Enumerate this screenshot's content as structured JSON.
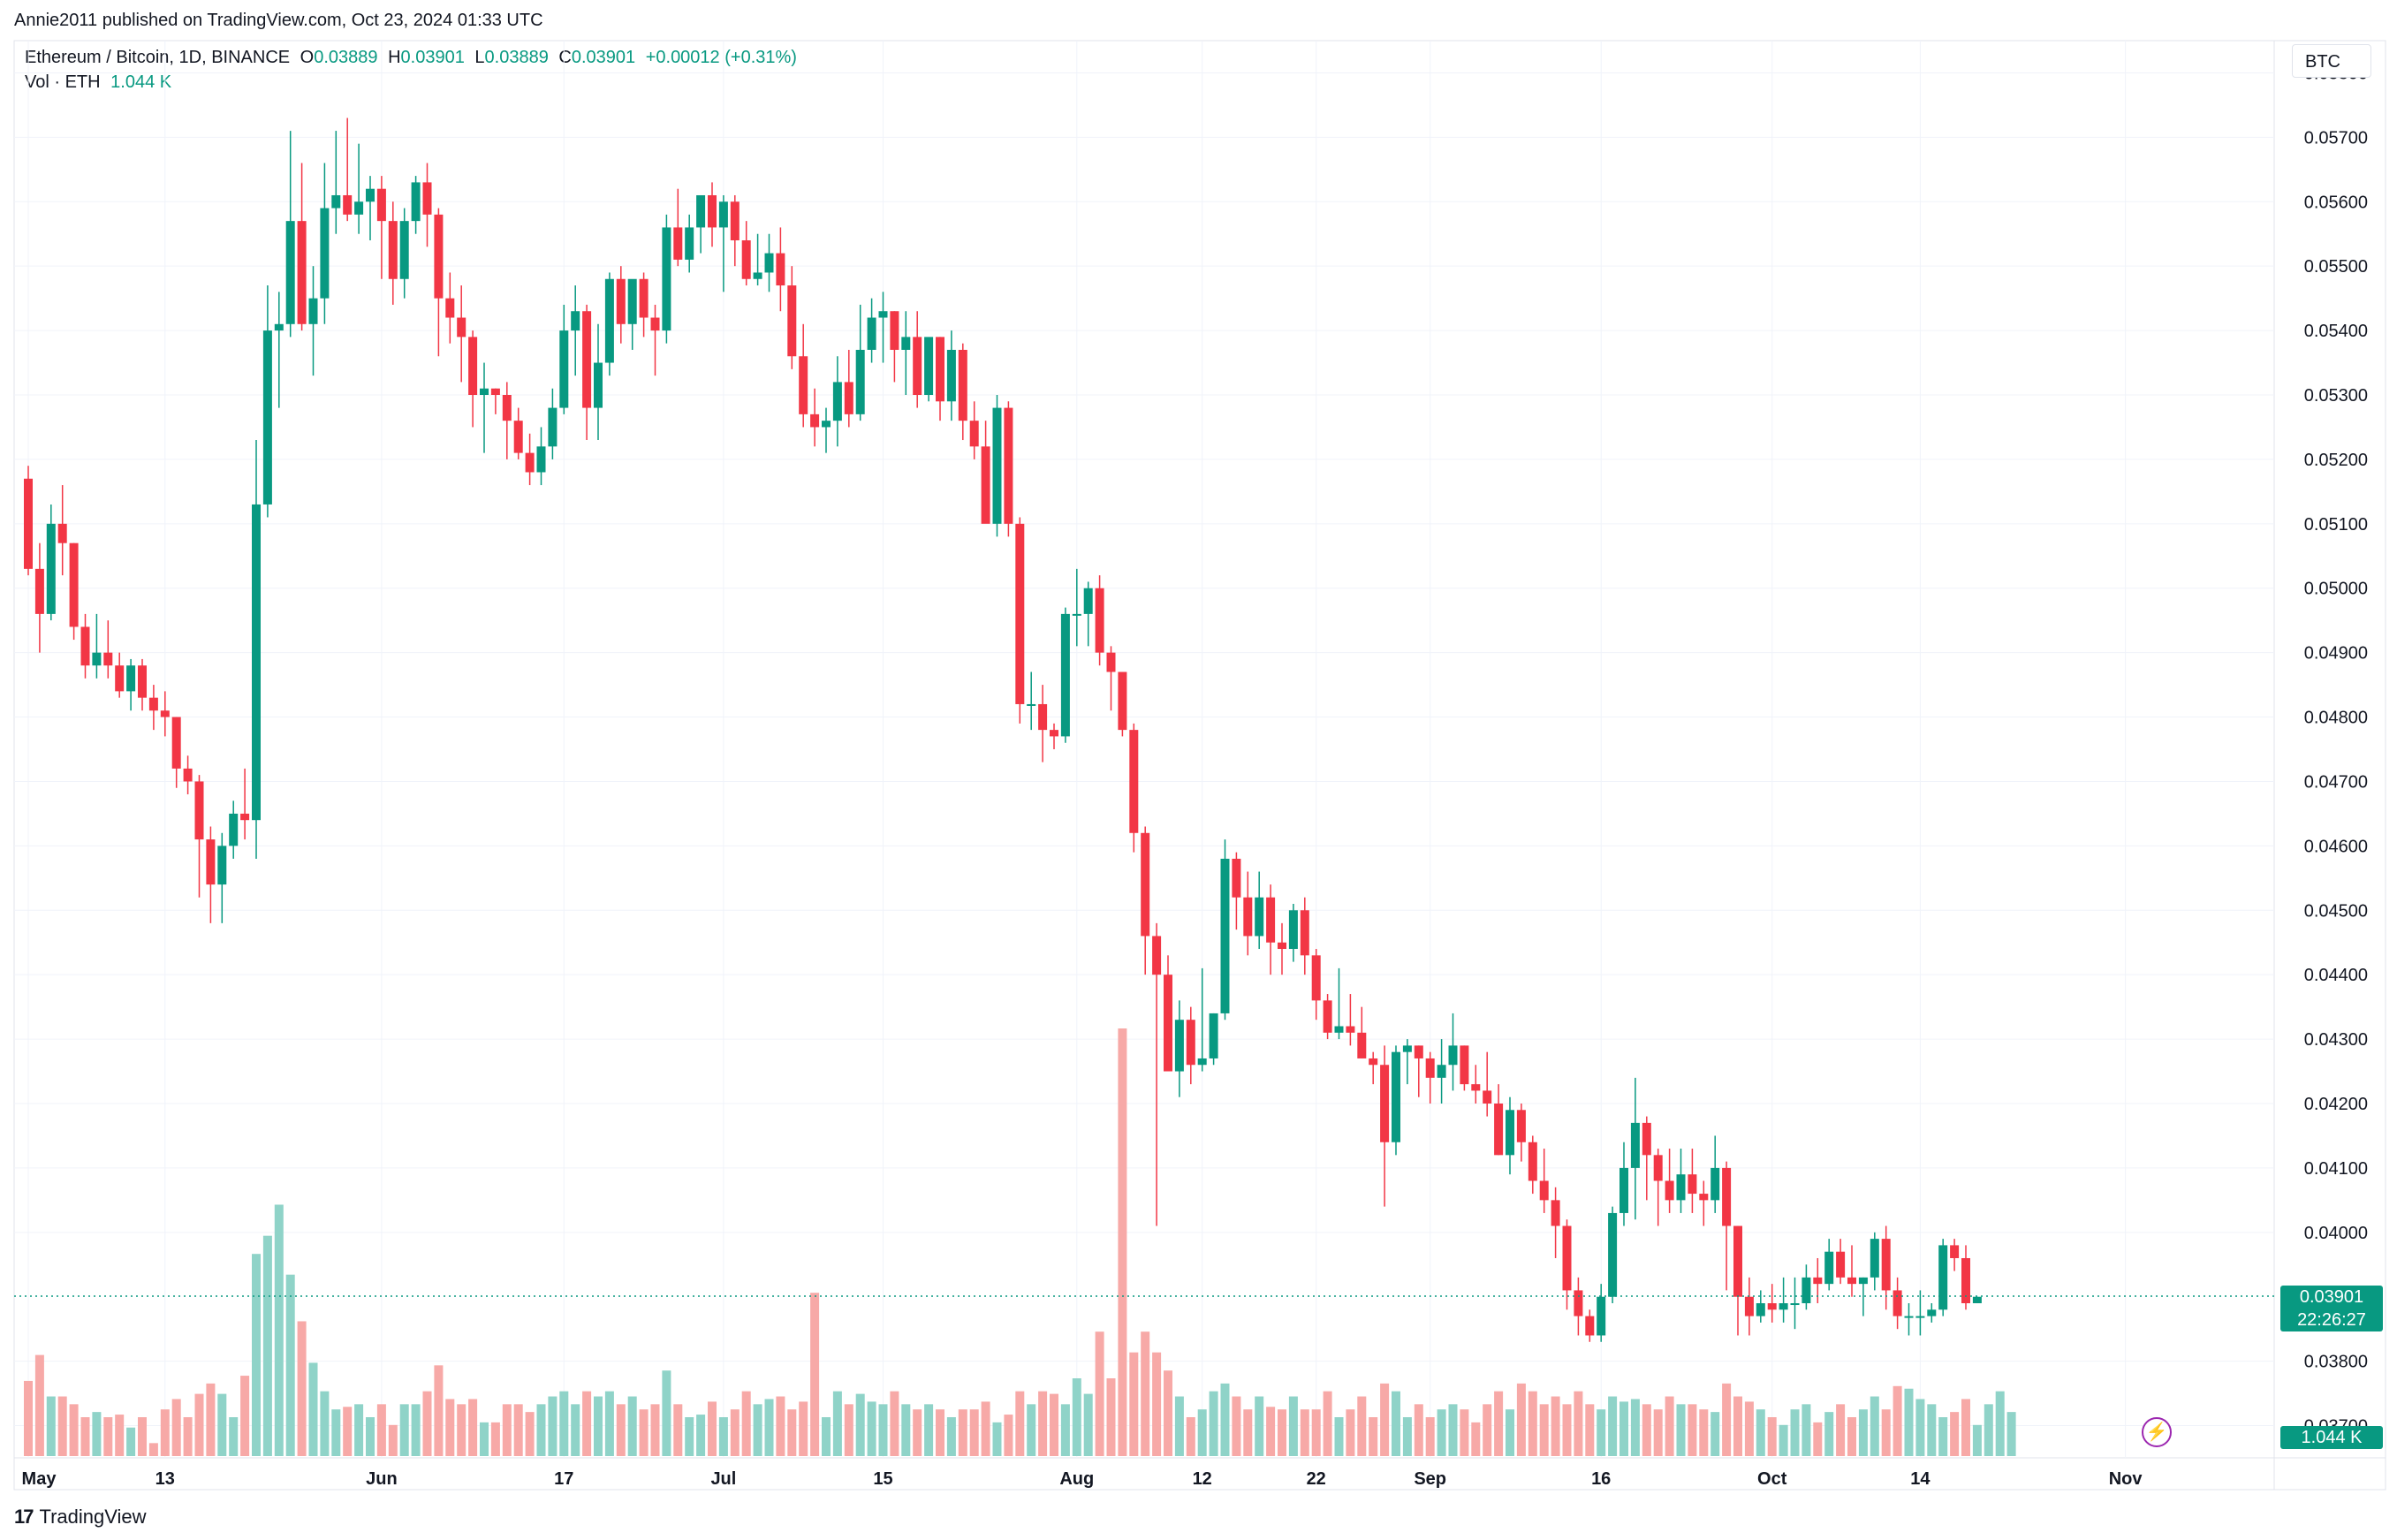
{
  "header": {
    "publisher": "Annie2011 published on TradingView.com, Oct 23, 2024 01:33 UTC",
    "symbol": "Ethereum / Bitcoin, 1D, BINANCE",
    "ohlc": {
      "o_label": "O",
      "o": "0.03889",
      "h_label": "H",
      "h": "0.03901",
      "l_label": "L",
      "l": "0.03889",
      "c_label": "C",
      "c": "0.03901",
      "change": "+0.00012 (+0.31%)"
    },
    "vol_label": "Vol · ETH",
    "vol_value": "1.044 K"
  },
  "unit_label": "BTC",
  "current_price": "0.03901",
  "countdown": "22:26:27",
  "volume_badge": "1.044 K",
  "footer": {
    "logo_mark": "17",
    "brand": "TradingView"
  },
  "colors": {
    "up": "#089981",
    "down": "#f23645",
    "up_vol": "#8fd3c8",
    "down_vol": "#f7a9a7",
    "grid": "#f0f3fa"
  },
  "chart_data": {
    "type": "candlestick",
    "title": "Ethereum / Bitcoin, 1D, BINANCE",
    "ylabel": "BTC",
    "ylim": [
      0.0365,
      0.0585
    ],
    "y_ticks": [
      "0.05800",
      "0.05700",
      "0.05600",
      "0.05500",
      "0.05400",
      "0.05300",
      "0.05200",
      "0.05100",
      "0.05000",
      "0.04900",
      "0.04800",
      "0.04700",
      "0.04600",
      "0.04500",
      "0.04400",
      "0.04300",
      "0.04200",
      "0.04100",
      "0.04000",
      "0.03800",
      "0.03700"
    ],
    "x_ticks": [
      {
        "label": "May",
        "index": 0
      },
      {
        "label": "13",
        "index": 12
      },
      {
        "label": "Jun",
        "index": 31
      },
      {
        "label": "17",
        "index": 47
      },
      {
        "label": "Jul",
        "index": 61
      },
      {
        "label": "15",
        "index": 75
      },
      {
        "label": "Aug",
        "index": 92
      },
      {
        "label": "12",
        "index": 103
      },
      {
        "label": "22",
        "index": 113
      },
      {
        "label": "Sep",
        "index": 123
      },
      {
        "label": "16",
        "index": 138
      },
      {
        "label": "Oct",
        "index": 153
      },
      {
        "label": "14",
        "index": 166
      },
      {
        "label": "Nov",
        "index": 184
      }
    ],
    "grid": true,
    "candles": [
      [
        0.0517,
        0.0519,
        0.0502,
        0.0503
      ],
      [
        0.0503,
        0.0507,
        0.049,
        0.0496
      ],
      [
        0.0496,
        0.0513,
        0.0495,
        0.051
      ],
      [
        0.051,
        0.0516,
        0.0502,
        0.0507
      ],
      [
        0.0507,
        0.0507,
        0.0492,
        0.0494
      ],
      [
        0.0494,
        0.0496,
        0.0486,
        0.0488
      ],
      [
        0.0488,
        0.0496,
        0.0486,
        0.049
      ],
      [
        0.049,
        0.0495,
        0.0486,
        0.0488
      ],
      [
        0.0488,
        0.049,
        0.0483,
        0.0484
      ],
      [
        0.0484,
        0.0489,
        0.0481,
        0.0488
      ],
      [
        0.0488,
        0.0489,
        0.0481,
        0.0483
      ],
      [
        0.0483,
        0.0485,
        0.0478,
        0.0481
      ],
      [
        0.0481,
        0.0484,
        0.0477,
        0.048
      ],
      [
        0.048,
        0.048,
        0.0469,
        0.0472
      ],
      [
        0.0472,
        0.0474,
        0.0468,
        0.047
      ],
      [
        0.047,
        0.0471,
        0.0452,
        0.0461
      ],
      [
        0.0461,
        0.0463,
        0.0448,
        0.0454
      ],
      [
        0.0454,
        0.0462,
        0.0448,
        0.046
      ],
      [
        0.046,
        0.0467,
        0.0458,
        0.0465
      ],
      [
        0.0465,
        0.0472,
        0.0461,
        0.0464
      ],
      [
        0.0464,
        0.0523,
        0.0458,
        0.0513
      ],
      [
        0.0513,
        0.0547,
        0.0511,
        0.054
      ],
      [
        0.054,
        0.0546,
        0.0528,
        0.0541
      ],
      [
        0.0541,
        0.0571,
        0.0539,
        0.0557
      ],
      [
        0.0557,
        0.0566,
        0.054,
        0.0541
      ],
      [
        0.0541,
        0.055,
        0.0533,
        0.0545
      ],
      [
        0.0545,
        0.0566,
        0.0541,
        0.0559
      ],
      [
        0.0559,
        0.0571,
        0.0555,
        0.0561
      ],
      [
        0.0561,
        0.0573,
        0.0557,
        0.0558
      ],
      [
        0.0558,
        0.0569,
        0.0555,
        0.056
      ],
      [
        0.056,
        0.0564,
        0.0554,
        0.0562
      ],
      [
        0.0562,
        0.0564,
        0.0548,
        0.0557
      ],
      [
        0.0557,
        0.056,
        0.0544,
        0.0548
      ],
      [
        0.0548,
        0.0559,
        0.0545,
        0.0557
      ],
      [
        0.0557,
        0.0564,
        0.0555,
        0.0563
      ],
      [
        0.0563,
        0.0566,
        0.0553,
        0.0558
      ],
      [
        0.0558,
        0.0559,
        0.0536,
        0.0545
      ],
      [
        0.0545,
        0.0549,
        0.0538,
        0.0542
      ],
      [
        0.0542,
        0.0547,
        0.0532,
        0.0539
      ],
      [
        0.0539,
        0.054,
        0.0525,
        0.053
      ],
      [
        0.053,
        0.0535,
        0.0521,
        0.0531
      ],
      [
        0.0531,
        0.0531,
        0.0527,
        0.053
      ],
      [
        0.053,
        0.0532,
        0.052,
        0.0526
      ],
      [
        0.0526,
        0.0528,
        0.052,
        0.0521
      ],
      [
        0.0521,
        0.0524,
        0.0516,
        0.0518
      ],
      [
        0.0518,
        0.0525,
        0.0516,
        0.0522
      ],
      [
        0.0522,
        0.0531,
        0.052,
        0.0528
      ],
      [
        0.0528,
        0.0544,
        0.0527,
        0.054
      ],
      [
        0.054,
        0.0547,
        0.0533,
        0.0543
      ],
      [
        0.0543,
        0.0544,
        0.0523,
        0.0528
      ],
      [
        0.0528,
        0.0541,
        0.0523,
        0.0535
      ],
      [
        0.0535,
        0.0549,
        0.0533,
        0.0548
      ],
      [
        0.0548,
        0.055,
        0.0538,
        0.0541
      ],
      [
        0.0541,
        0.0547,
        0.0537,
        0.0548
      ],
      [
        0.0548,
        0.0549,
        0.0539,
        0.0542
      ],
      [
        0.0542,
        0.0544,
        0.0533,
        0.054
      ],
      [
        0.054,
        0.0558,
        0.0538,
        0.0556
      ],
      [
        0.0556,
        0.0562,
        0.055,
        0.0551
      ],
      [
        0.0551,
        0.0558,
        0.0549,
        0.0556
      ],
      [
        0.0556,
        0.0561,
        0.0552,
        0.0561
      ],
      [
        0.0561,
        0.0563,
        0.0553,
        0.0556
      ],
      [
        0.0556,
        0.0561,
        0.0546,
        0.056
      ],
      [
        0.056,
        0.0561,
        0.055,
        0.0554
      ],
      [
        0.0554,
        0.0557,
        0.0547,
        0.0548
      ],
      [
        0.0548,
        0.0555,
        0.0547,
        0.0549
      ],
      [
        0.0549,
        0.0555,
        0.0546,
        0.0552
      ],
      [
        0.0552,
        0.0556,
        0.0543,
        0.0547
      ],
      [
        0.0547,
        0.055,
        0.0534,
        0.0536
      ],
      [
        0.0536,
        0.0541,
        0.0525,
        0.0527
      ],
      [
        0.0527,
        0.0531,
        0.0522,
        0.0525
      ],
      [
        0.0525,
        0.0528,
        0.0521,
        0.0526
      ],
      [
        0.0526,
        0.0536,
        0.0522,
        0.0532
      ],
      [
        0.0532,
        0.0537,
        0.0525,
        0.0527
      ],
      [
        0.0527,
        0.0544,
        0.0526,
        0.0537
      ],
      [
        0.0537,
        0.0545,
        0.0535,
        0.0542
      ],
      [
        0.0542,
        0.0546,
        0.0535,
        0.0543
      ],
      [
        0.0543,
        0.0543,
        0.0532,
        0.0537
      ],
      [
        0.0537,
        0.0543,
        0.053,
        0.0539
      ],
      [
        0.0539,
        0.0543,
        0.0528,
        0.053
      ],
      [
        0.053,
        0.0538,
        0.0529,
        0.0539
      ],
      [
        0.0539,
        0.0539,
        0.0526,
        0.0529
      ],
      [
        0.0529,
        0.054,
        0.0526,
        0.0537
      ],
      [
        0.0537,
        0.0538,
        0.0523,
        0.0526
      ],
      [
        0.0526,
        0.0529,
        0.052,
        0.0522
      ],
      [
        0.0522,
        0.0526,
        0.0512,
        0.051
      ],
      [
        0.051,
        0.053,
        0.0508,
        0.0528
      ],
      [
        0.0528,
        0.0529,
        0.0508,
        0.051
      ],
      [
        0.051,
        0.0511,
        0.0479,
        0.0482
      ],
      [
        0.0482,
        0.0487,
        0.0478,
        0.0482
      ],
      [
        0.0482,
        0.0485,
        0.0473,
        0.0478
      ],
      [
        0.0478,
        0.0479,
        0.0475,
        0.0477
      ],
      [
        0.0477,
        0.0497,
        0.0476,
        0.0496
      ],
      [
        0.0496,
        0.0503,
        0.0491,
        0.0496
      ],
      [
        0.0496,
        0.0501,
        0.0491,
        0.05
      ],
      [
        0.05,
        0.0502,
        0.0488,
        0.049
      ],
      [
        0.049,
        0.0491,
        0.0481,
        0.0487
      ],
      [
        0.0487,
        0.0487,
        0.0477,
        0.0478
      ],
      [
        0.0478,
        0.0479,
        0.0459,
        0.0462
      ],
      [
        0.0462,
        0.0463,
        0.044,
        0.0446
      ],
      [
        0.0446,
        0.0448,
        0.0401,
        0.044
      ],
      [
        0.044,
        0.0443,
        0.0427,
        0.0425
      ],
      [
        0.0425,
        0.0436,
        0.0421,
        0.0433
      ],
      [
        0.0433,
        0.0435,
        0.0423,
        0.0426
      ],
      [
        0.0426,
        0.0441,
        0.0425,
        0.0427
      ],
      [
        0.0427,
        0.0434,
        0.0426,
        0.0434
      ],
      [
        0.0434,
        0.0461,
        0.0433,
        0.0458
      ],
      [
        0.0458,
        0.0459,
        0.0447,
        0.0452
      ],
      [
        0.0452,
        0.0456,
        0.0443,
        0.0446
      ],
      [
        0.0446,
        0.0456,
        0.0444,
        0.0452
      ],
      [
        0.0452,
        0.0454,
        0.044,
        0.0445
      ],
      [
        0.0445,
        0.0448,
        0.044,
        0.0444
      ],
      [
        0.0444,
        0.0451,
        0.0442,
        0.045
      ],
      [
        0.045,
        0.0452,
        0.044,
        0.0443
      ],
      [
        0.0443,
        0.0444,
        0.0433,
        0.0436
      ],
      [
        0.0436,
        0.0437,
        0.043,
        0.0431
      ],
      [
        0.0431,
        0.0441,
        0.043,
        0.0432
      ],
      [
        0.0432,
        0.0437,
        0.0429,
        0.0431
      ],
      [
        0.0431,
        0.0435,
        0.0427,
        0.0427
      ],
      [
        0.0427,
        0.0428,
        0.0423,
        0.0426
      ],
      [
        0.0426,
        0.0429,
        0.0404,
        0.0414
      ],
      [
        0.0414,
        0.0429,
        0.0412,
        0.0428
      ],
      [
        0.0428,
        0.043,
        0.0423,
        0.0429
      ],
      [
        0.0429,
        0.0429,
        0.0421,
        0.0427
      ],
      [
        0.0427,
        0.0428,
        0.042,
        0.0424
      ],
      [
        0.0424,
        0.043,
        0.042,
        0.0426
      ],
      [
        0.0426,
        0.0434,
        0.0422,
        0.0429
      ],
      [
        0.0429,
        0.0429,
        0.0422,
        0.0423
      ],
      [
        0.0423,
        0.0426,
        0.042,
        0.0422
      ],
      [
        0.0422,
        0.0428,
        0.0418,
        0.042
      ],
      [
        0.042,
        0.0423,
        0.0412,
        0.0412
      ],
      [
        0.0412,
        0.0421,
        0.0409,
        0.0419
      ],
      [
        0.0419,
        0.042,
        0.0411,
        0.0414
      ],
      [
        0.0414,
        0.0415,
        0.0406,
        0.0408
      ],
      [
        0.0408,
        0.0413,
        0.0403,
        0.0405
      ],
      [
        0.0405,
        0.0407,
        0.0396,
        0.0401
      ],
      [
        0.0401,
        0.0402,
        0.0388,
        0.0391
      ],
      [
        0.0391,
        0.0393,
        0.0384,
        0.0387
      ],
      [
        0.0387,
        0.0388,
        0.0383,
        0.0384
      ],
      [
        0.0384,
        0.0392,
        0.0383,
        0.039
      ],
      [
        0.039,
        0.0404,
        0.0389,
        0.0403
      ],
      [
        0.0403,
        0.0414,
        0.0401,
        0.041
      ],
      [
        0.041,
        0.0424,
        0.0402,
        0.0417
      ],
      [
        0.0417,
        0.0418,
        0.0405,
        0.0412
      ],
      [
        0.0412,
        0.0413,
        0.0401,
        0.0408
      ],
      [
        0.0408,
        0.0413,
        0.0403,
        0.0405
      ],
      [
        0.0405,
        0.0413,
        0.0403,
        0.0409
      ],
      [
        0.0409,
        0.0413,
        0.0403,
        0.0406
      ],
      [
        0.0406,
        0.0408,
        0.0401,
        0.0405
      ],
      [
        0.0405,
        0.0415,
        0.0403,
        0.041
      ],
      [
        0.041,
        0.0411,
        0.0391,
        0.0401
      ],
      [
        0.0401,
        0.0401,
        0.0384,
        0.039
      ],
      [
        0.039,
        0.0393,
        0.0384,
        0.0387
      ],
      [
        0.0387,
        0.0391,
        0.0386,
        0.0389
      ],
      [
        0.0389,
        0.0392,
        0.0386,
        0.0388
      ],
      [
        0.0388,
        0.0393,
        0.0386,
        0.0389
      ],
      [
        0.0389,
        0.0393,
        0.0385,
        0.0389
      ],
      [
        0.0389,
        0.0395,
        0.0388,
        0.0393
      ],
      [
        0.0393,
        0.0396,
        0.0389,
        0.0392
      ],
      [
        0.0392,
        0.0399,
        0.0391,
        0.0397
      ],
      [
        0.0397,
        0.0399,
        0.0392,
        0.0393
      ],
      [
        0.0393,
        0.0398,
        0.039,
        0.0392
      ],
      [
        0.0392,
        0.0393,
        0.0387,
        0.0393
      ],
      [
        0.0393,
        0.04,
        0.0391,
        0.0399
      ],
      [
        0.0399,
        0.0401,
        0.0388,
        0.0391
      ],
      [
        0.0391,
        0.0393,
        0.0385,
        0.0387
      ],
      [
        0.0387,
        0.0389,
        0.0384,
        0.0387
      ],
      [
        0.0387,
        0.0391,
        0.0384,
        0.0387
      ],
      [
        0.0387,
        0.0389,
        0.0386,
        0.0388
      ],
      [
        0.0388,
        0.0399,
        0.0387,
        0.0398
      ],
      [
        0.0398,
        0.0399,
        0.0394,
        0.0396
      ],
      [
        0.0396,
        0.0398,
        0.0388,
        0.0389
      ],
      [
        0.0389,
        0.039,
        0.0389,
        0.039
      ]
    ],
    "volume_series": {
      "name": "Vol · ETH",
      "ylim": [
        0,
        300
      ],
      "values": [
        58,
        78,
        46,
        46,
        40,
        30,
        34,
        30,
        32,
        22,
        30,
        10,
        36,
        44,
        30,
        48,
        56,
        48,
        30,
        62,
        156,
        170,
        194,
        140,
        104,
        72,
        50,
        36,
        38,
        40,
        30,
        40,
        24,
        40,
        40,
        50,
        70,
        44,
        40,
        44,
        26,
        26,
        40,
        40,
        34,
        40,
        46,
        50,
        40,
        50,
        46,
        50,
        40,
        46,
        36,
        40,
        66,
        40,
        30,
        32,
        42,
        30,
        36,
        50,
        40,
        44,
        46,
        36,
        42,
        126,
        30,
        50,
        40,
        48,
        42,
        40,
        50,
        40,
        36,
        40,
        36,
        30,
        36,
        36,
        42,
        26,
        32,
        50,
        40,
        50,
        48,
        40,
        60,
        48,
        96,
        60,
        330,
        80,
        96,
        80,
        66,
        46,
        30,
        36,
        50,
        56,
        46,
        36,
        46,
        38,
        36,
        46,
        36,
        36,
        50,
        30,
        36,
        46,
        30,
        56,
        50,
        30,
        40,
        30,
        36,
        40,
        36,
        26,
        40,
        50,
        36,
        56,
        50,
        40,
        46,
        40,
        50,
        40,
        36,
        46,
        42,
        44,
        40,
        36,
        46,
        40,
        40,
        36,
        34,
        56,
        46,
        42,
        36,
        30,
        24,
        36,
        40,
        26,
        34,
        40,
        30,
        36,
        46,
        36,
        54,
        52,
        44,
        40,
        30,
        34,
        44,
        24,
        40,
        50,
        34
      ]
    }
  }
}
